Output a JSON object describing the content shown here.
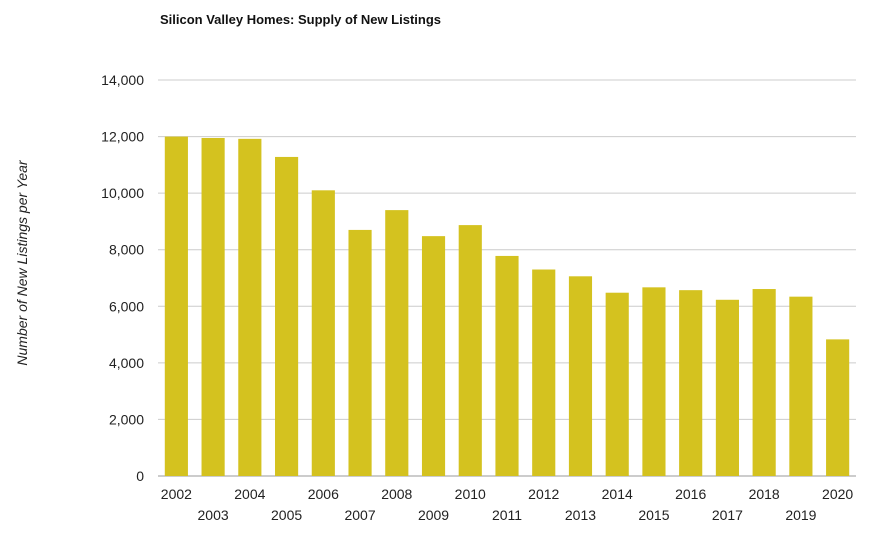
{
  "chart_data": {
    "type": "bar",
    "title": "Silicon Valley Homes: Supply of New Listings",
    "xlabel": "",
    "ylabel": "Number of New Listings per Year",
    "categories": [
      "2002",
      "2003",
      "2004",
      "2005",
      "2006",
      "2007",
      "2008",
      "2009",
      "2010",
      "2011",
      "2012",
      "2013",
      "2014",
      "2015",
      "2016",
      "2017",
      "2018",
      "2019",
      "2020"
    ],
    "values": [
      12000,
      11950,
      11920,
      11280,
      10100,
      8700,
      9400,
      8480,
      8870,
      7780,
      7300,
      7060,
      6480,
      6670,
      6570,
      6230,
      6610,
      6340,
      4830
    ],
    "ylim": [
      0,
      14000
    ],
    "yticks": [
      0,
      2000,
      4000,
      6000,
      8000,
      10000,
      12000,
      14000
    ],
    "ytick_labels": [
      "0",
      "2,000",
      "4,000",
      "6,000",
      "8,000",
      "10,000",
      "12,000",
      "14,000"
    ],
    "grid": true,
    "bar_color": "#d4c21f",
    "grid_color": "#cccccc"
  }
}
